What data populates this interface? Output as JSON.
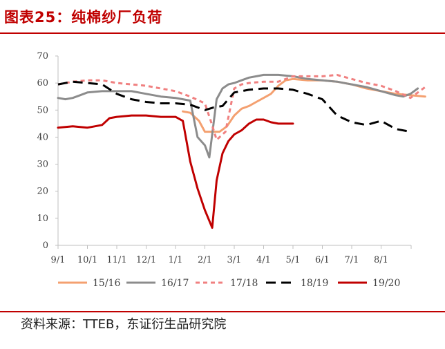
{
  "title": "图表25：纯棉纱厂负荷",
  "source": "资料来源：TTEB，东证衍生品研究院",
  "chart_data": {
    "type": "line",
    "title": "纯棉纱厂负荷",
    "xlabel": "",
    "ylabel": "",
    "ylim": [
      0,
      70
    ],
    "yticks": [
      0,
      10,
      20,
      30,
      40,
      50,
      60,
      70
    ],
    "xlim": [
      0,
      12.75
    ],
    "x_tick_labels": [
      "9/1",
      "10/1",
      "11/1",
      "12/1",
      "1/1",
      "2/1",
      "3/1",
      "4/1",
      "5/1",
      "6/1",
      "7/1",
      "8/1"
    ],
    "x_tick_positions": [
      0,
      1,
      2,
      3,
      4,
      5,
      6,
      7,
      8,
      9,
      10,
      11
    ],
    "x_unit_note": "x = months since 9/1",
    "grid": false,
    "legend_position": "bottom",
    "series": [
      {
        "name": "15/16",
        "color": "#f4a070",
        "dash": "solid",
        "x": [
          4.25,
          4.5,
          4.8,
          5.0,
          5.25,
          5.5,
          5.75,
          6.0,
          6.25,
          6.5,
          6.75,
          7.0,
          7.25,
          7.5,
          7.75,
          8.0,
          8.5,
          9.0,
          9.5,
          10.0,
          10.5,
          11.0,
          11.5,
          12.0,
          12.5
        ],
        "y": [
          49.5,
          49,
          46,
          42,
          42,
          42,
          44,
          48,
          50.5,
          51.5,
          53,
          54.5,
          56,
          59,
          61,
          61.5,
          61,
          61,
          60.5,
          59.5,
          58,
          57,
          56,
          55.5,
          55
        ]
      },
      {
        "name": "16/17",
        "color": "#8c8c8c",
        "dash": "solid",
        "x": [
          0,
          0.25,
          0.5,
          0.75,
          1.0,
          1.5,
          2.0,
          2.5,
          3.0,
          3.5,
          4.0,
          4.25,
          4.5,
          4.75,
          5.0,
          5.15,
          5.4,
          5.6,
          5.8,
          6.0,
          6.25,
          6.5,
          6.75,
          7.0,
          7.5,
          8.0,
          8.5,
          9.0,
          9.5,
          10.0,
          10.5,
          11.0,
          11.5,
          11.75,
          12.0,
          12.25
        ],
        "y": [
          54.5,
          54,
          54.5,
          55.5,
          56.5,
          57,
          57,
          57,
          56,
          55,
          54.5,
          54,
          53.5,
          40,
          37,
          32.5,
          54,
          58,
          59.5,
          60,
          61,
          62,
          62.5,
          63,
          63,
          62.5,
          61.5,
          61,
          60.5,
          59.5,
          58.5,
          57,
          55.5,
          55,
          56,
          58
        ]
      },
      {
        "name": "17/18",
        "color": "#f08080",
        "dash": "short",
        "x": [
          0,
          0.5,
          1.0,
          1.5,
          2.0,
          2.5,
          3.0,
          3.5,
          4.0,
          4.5,
          5.0,
          5.2,
          5.4,
          5.7,
          6.0,
          6.25,
          6.5,
          7.0,
          7.5,
          8.0,
          8.5,
          9.0,
          9.5,
          10.0,
          10.5,
          11.0,
          11.5,
          12.0,
          12.5
        ],
        "y": [
          59.5,
          60.5,
          61,
          61,
          60,
          59.5,
          59,
          58,
          57,
          55,
          52.5,
          46,
          39,
          42,
          58,
          59.5,
          60,
          60.5,
          60.5,
          62.5,
          62.5,
          62.5,
          63,
          61.5,
          60,
          59,
          57,
          54.5,
          58.5
        ]
      },
      {
        "name": "18/19",
        "color": "#000000",
        "dash": "long",
        "x": [
          0,
          0.5,
          1.0,
          1.5,
          2.0,
          2.5,
          3.0,
          3.5,
          4.0,
          4.5,
          5.0,
          5.3,
          5.6,
          6.0,
          6.5,
          7.0,
          7.5,
          8.0,
          8.5,
          9.0,
          9.5,
          10.0,
          10.5,
          11.0,
          11.5,
          12.0
        ],
        "y": [
          59.5,
          60.5,
          60,
          59.5,
          56,
          54,
          53,
          52.5,
          52.5,
          52,
          50,
          51,
          51.5,
          56.5,
          57.5,
          58,
          58,
          57.5,
          56,
          54,
          48,
          45.5,
          44.5,
          46,
          43,
          42
        ]
      },
      {
        "name": "19/20",
        "color": "#c00000",
        "dash": "solid",
        "x": [
          0,
          0.5,
          1.0,
          1.25,
          1.5,
          1.75,
          2.0,
          2.5,
          3.0,
          3.5,
          4.0,
          4.25,
          4.5,
          4.75,
          5.0,
          5.25,
          5.4,
          5.6,
          5.8,
          6.0,
          6.25,
          6.5,
          6.75,
          7.0,
          7.25,
          7.5,
          7.75,
          8.0
        ],
        "y": [
          43.5,
          44,
          43.5,
          44,
          44.5,
          47,
          47.5,
          48,
          48,
          47.5,
          47.5,
          46,
          31,
          21,
          13,
          6.5,
          24,
          34,
          38.5,
          41,
          42.5,
          45,
          46.5,
          46.5,
          45.5,
          45,
          45,
          45
        ]
      }
    ]
  }
}
